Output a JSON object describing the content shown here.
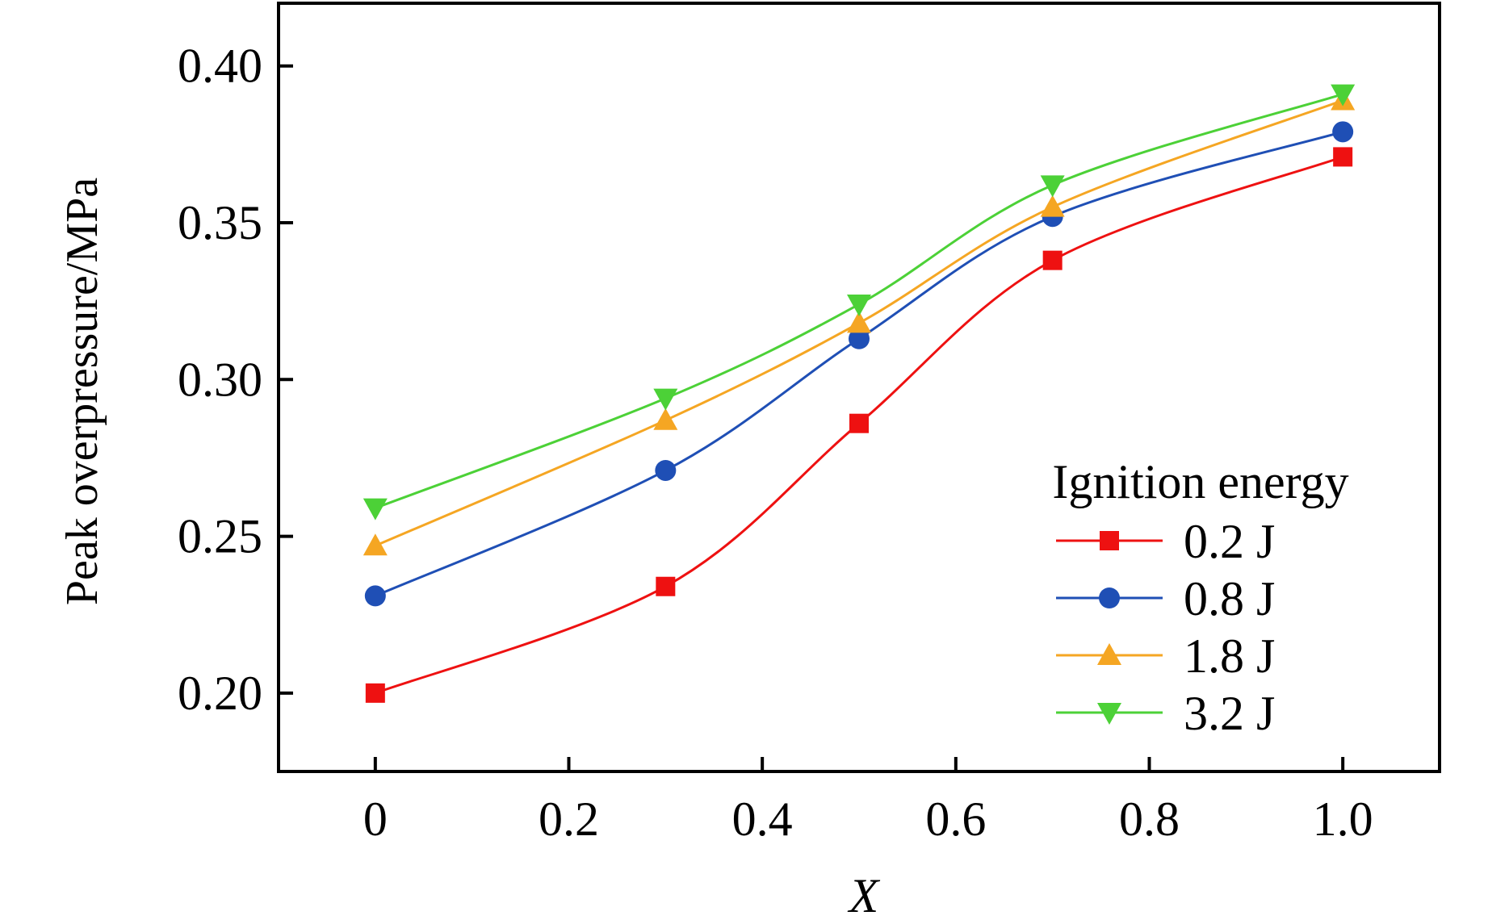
{
  "chart_data": {
    "type": "line",
    "xlabel": "X",
    "ylabel": "Peak overpressure/MPa",
    "xlim": [
      -0.1,
      1.1
    ],
    "ylim": [
      0.175,
      0.42
    ],
    "x": [
      0,
      0.3,
      0.5,
      0.7,
      1.0
    ],
    "xticks": [
      0,
      0.2,
      0.4,
      0.6,
      0.8,
      1.0
    ],
    "xtick_labels": [
      "0",
      "0.2",
      "0.4",
      "0.6",
      "0.8",
      "1.0"
    ],
    "yticks": [
      0.2,
      0.25,
      0.3,
      0.35,
      0.4
    ],
    "ytick_labels": [
      "0.20",
      "0.25",
      "0.30",
      "0.35",
      "0.40"
    ],
    "legend": {
      "title": "Ignition energy",
      "position": "lower-right"
    },
    "series": [
      {
        "name": "0.2 J",
        "color": "#ee1111",
        "marker": "square",
        "values": [
          0.2,
          0.234,
          0.286,
          0.338,
          0.371
        ]
      },
      {
        "name": "0.8 J",
        "color": "#1f4fb5",
        "marker": "circle",
        "values": [
          0.231,
          0.271,
          0.313,
          0.352,
          0.379
        ]
      },
      {
        "name": "1.8 J",
        "color": "#f5a623",
        "marker": "triangle-up",
        "values": [
          0.247,
          0.287,
          0.318,
          0.355,
          0.389
        ]
      },
      {
        "name": "3.2 J",
        "color": "#4cd137",
        "marker": "triangle-down",
        "values": [
          0.259,
          0.294,
          0.324,
          0.362,
          0.391
        ]
      }
    ]
  }
}
